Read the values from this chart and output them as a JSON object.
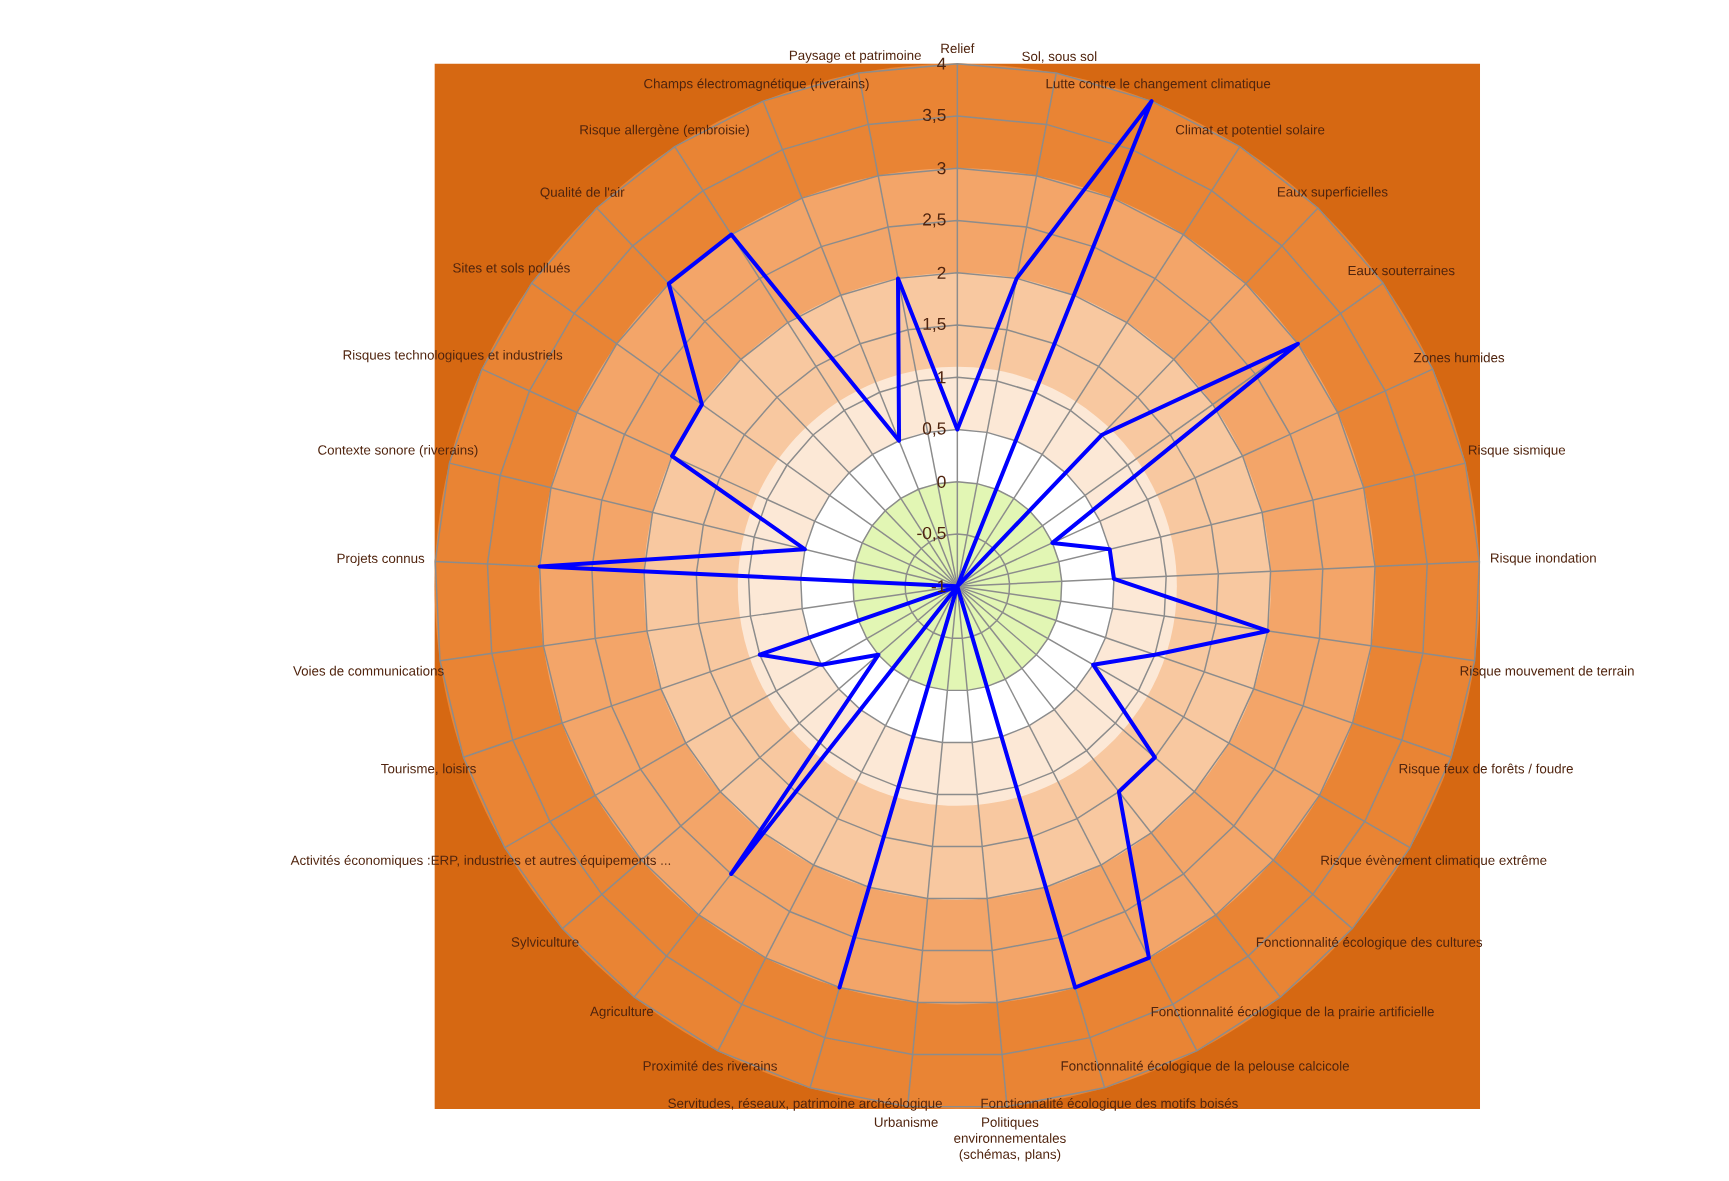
{
  "chart_data": {
    "type": "radar",
    "categories": [
      "Relief",
      "Sol, sous sol",
      "Lutte contre le changement climatique",
      "Climat et potentiel solaire",
      "Eaux superficielles",
      "Eaux souterraines",
      "Zones humides",
      "Risque sismique",
      "Risque inondation",
      "Risque mouvement de terrain",
      "Risque feux de forêts / foudre",
      "Risque évènement climatique extrême",
      "Fonctionnalité écologique des cultures",
      "Fonctionnalité écologique de la prairie artificielle",
      "Fonctionnalité écologique de la pelouse calcicole",
      "Fonctionnalité écologique des motifs boisés",
      "Politiques environnementales (schémas, plans)",
      "Urbanisme",
      "Servitudes, réseaux, patrimoine archéologique",
      "Proximité des riverains",
      "Agriculture",
      "Sylviculture",
      "Activités économiques :ERP, industries et autres équipements ...",
      "Tourisme, loisirs",
      "Voies de communications",
      "Projets connus",
      "Contexte sonore (riverains)",
      "Risques technologiques et industriels",
      "Sites et sols pollués",
      "Qualité de l'air",
      "Risque allergène (embroisie)",
      "Champs électromagnétique (riverains)",
      "Paysage et patrimoine"
    ],
    "series": [
      {
        "color": "#0000ff",
        "values": [
          0.5,
          2,
          4,
          -1,
          1,
          3,
          0,
          0.5,
          0.5,
          2,
          1,
          0.5,
          1.5,
          1.5,
          3,
          3,
          -1,
          -1,
          3,
          -1,
          2.5,
          0,
          0.5,
          1,
          -1,
          3,
          0.5,
          2,
          2,
          3,
          3,
          0.5,
          2
        ]
      }
    ],
    "ylim": [
      -1,
      4
    ],
    "yticks": [
      {
        "value": -1,
        "label": "-1"
      },
      {
        "value": -0.5,
        "label": "-0,5"
      },
      {
        "value": 0,
        "label": "0"
      },
      {
        "value": 0.5,
        "label": "0,5"
      },
      {
        "value": 1,
        "label": "1"
      },
      {
        "value": 1.5,
        "label": "1,5"
      },
      {
        "value": 2,
        "label": "2"
      },
      {
        "value": 2.5,
        "label": "2,5"
      },
      {
        "value": 3,
        "label": "3"
      },
      {
        "value": 3.5,
        "label": "3,5"
      },
      {
        "value": 4,
        "label": "4"
      }
    ],
    "grid": true
  }
}
